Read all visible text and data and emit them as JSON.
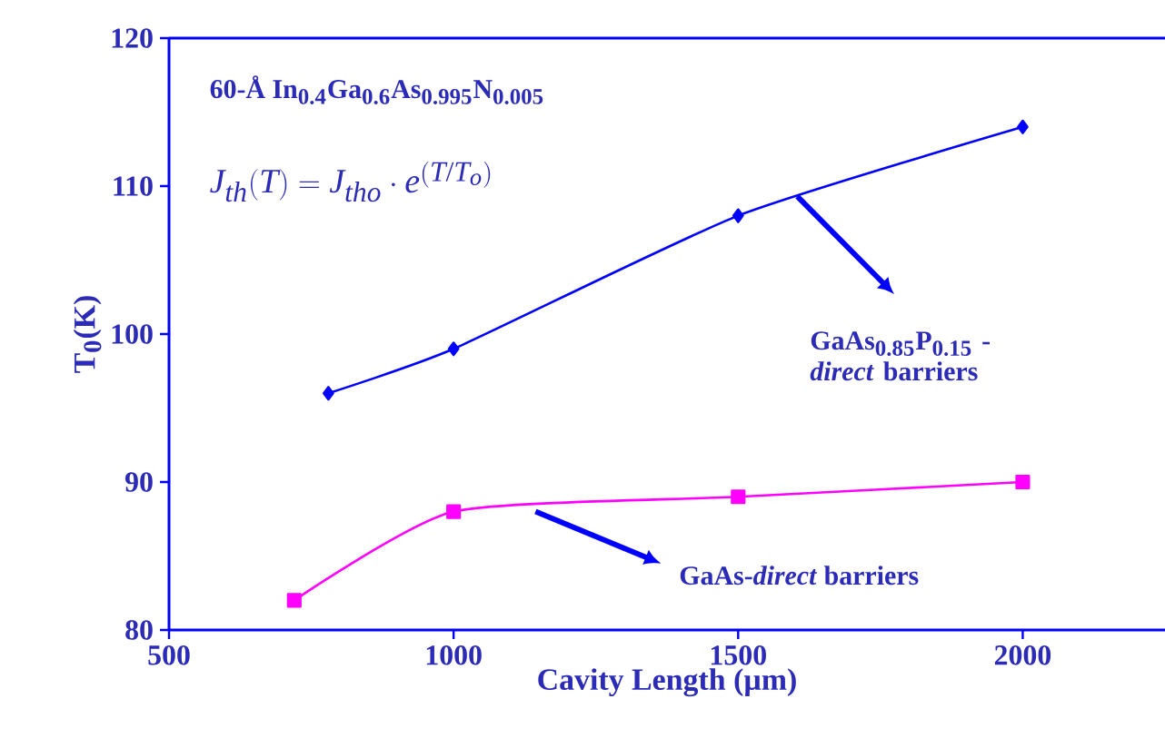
{
  "chart_data": {
    "type": "line",
    "xlabel": "Cavity Length (µm)",
    "ylabel": "T$_{0}$(K)",
    "xlim": [
      500,
      2250
    ],
    "xticks": [
      500,
      1000,
      1500,
      2000
    ],
    "ylim": [
      80,
      120
    ],
    "yticks": [
      80,
      90,
      100,
      110,
      120
    ],
    "series": [
      {
        "color": "#0000ff",
        "marker": "diamond",
        "x": [
          780,
          1000,
          1500,
          2000
        ],
        "values": [
          96,
          99,
          108,
          114
        ]
      },
      {
        "color": "#ff00ff",
        "marker": "square",
        "x": [
          720,
          1000,
          1500,
          2000
        ],
        "values": [
          82,
          88,
          89,
          90
        ]
      }
    ],
    "annotations": [
      "60-Å In$_{0.4}$Ga$_{0.6}$As$_{0.995}$N$_{0.005}$",
      "J_{th}(T) = J_{tho}\\cdot e^{(T/T_o)}",
      "GaAs$_{0.85}$P$_{0.15}$ - *direct* barriers",
      "GaAs-*direct* barriers"
    ],
    "grid": false
  }
}
